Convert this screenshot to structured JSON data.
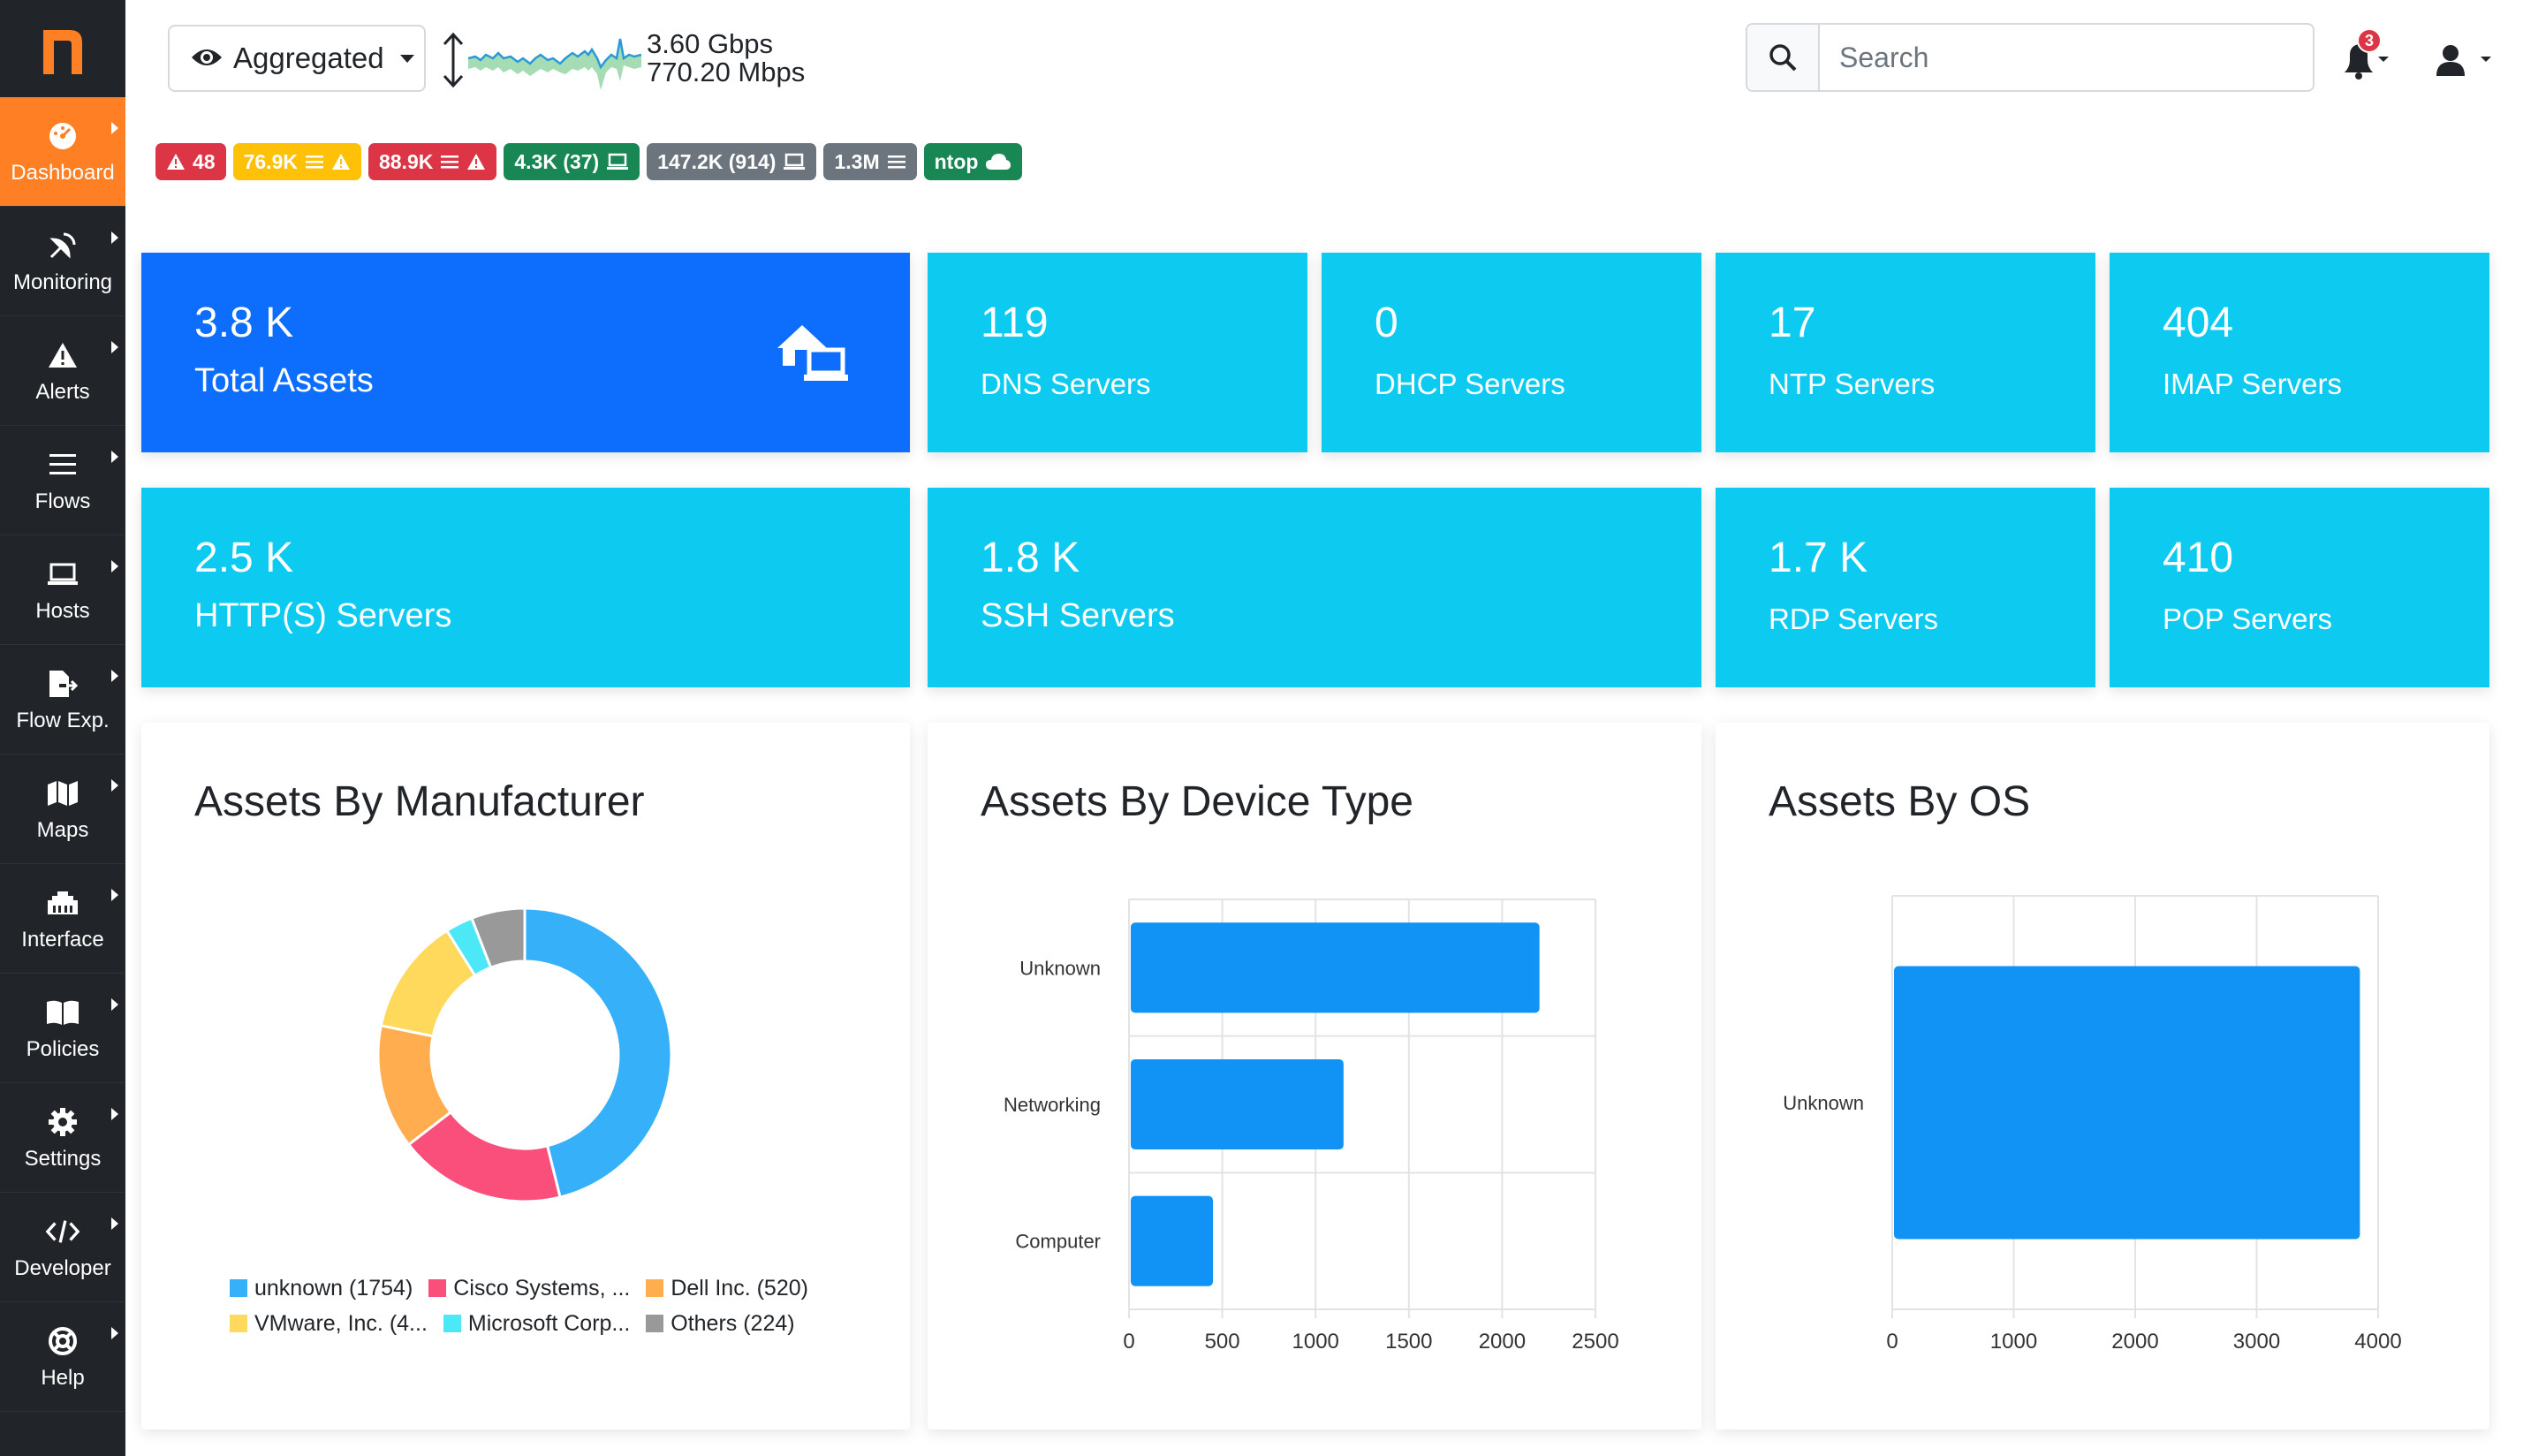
{
  "app": {
    "logo_letter": "n"
  },
  "sidebar": {
    "items": [
      {
        "label": "Dashboard",
        "icon": "gauge-icon",
        "active": true
      },
      {
        "label": "Monitoring",
        "icon": "satellite-dish-icon"
      },
      {
        "label": "Alerts",
        "icon": "warning-triangle-icon"
      },
      {
        "label": "Flows",
        "icon": "list-lines-icon"
      },
      {
        "label": "Hosts",
        "icon": "laptop-icon"
      },
      {
        "label": "Flow Exp.",
        "icon": "file-export-icon"
      },
      {
        "label": "Maps",
        "icon": "map-icon"
      },
      {
        "label": "Interface",
        "icon": "ethernet-icon"
      },
      {
        "label": "Policies",
        "icon": "book-icon"
      },
      {
        "label": "Settings",
        "icon": "gear-icon"
      },
      {
        "label": "Developer",
        "icon": "code-icon"
      },
      {
        "label": "Help",
        "icon": "life-ring-icon"
      }
    ]
  },
  "topbar": {
    "interface": "Aggregated",
    "throughput_upper": "3.60 Gbps",
    "throughput_lower": "770.20 Mbps",
    "search_placeholder": "Search",
    "notifications_count": "3"
  },
  "badges": [
    {
      "text": "48",
      "color": "#dc3545",
      "text_color": "#ffffff",
      "icons": [
        "warning-icon"
      ],
      "icon_first": true
    },
    {
      "text": "76.9K",
      "color": "#ffc107",
      "text_color": "#ffffff",
      "icons": [
        "list-icon",
        "warning-icon"
      ]
    },
    {
      "text": "88.9K",
      "color": "#dc3545",
      "text_color": "#ffffff",
      "icons": [
        "list-icon",
        "warning-icon"
      ]
    },
    {
      "text": "4.3K (37)",
      "color": "#198754",
      "text_color": "#ffffff",
      "icons": [
        "laptop-icon"
      ]
    },
    {
      "text": "147.2K (914)",
      "color": "#6c757d",
      "text_color": "#ffffff",
      "icons": [
        "laptop-icon"
      ]
    },
    {
      "text": "1.3M",
      "color": "#6c757d",
      "text_color": "#ffffff",
      "icons": [
        "list-icon"
      ]
    },
    {
      "text": "ntop",
      "color": "#198754",
      "text_color": "#ffffff",
      "icons": [
        "cloud-icon"
      ]
    }
  ],
  "cards": {
    "total_assets": {
      "value": "3.8 K",
      "label": "Total Assets",
      "color": "#0d6efd"
    },
    "dns": {
      "value": "119",
      "label": "DNS Servers",
      "color": "#0dcaf0"
    },
    "dhcp": {
      "value": "0",
      "label": "DHCP Servers",
      "color": "#0dcaf0"
    },
    "ntp": {
      "value": "17",
      "label": "NTP Servers",
      "color": "#0dcaf0"
    },
    "imap": {
      "value": "404",
      "label": "IMAP Servers",
      "color": "#0dcaf0"
    },
    "http": {
      "value": "2.5 K",
      "label": "HTTP(S) Servers",
      "color": "#0dcaf0"
    },
    "ssh": {
      "value": "1.8 K",
      "label": "SSH Servers",
      "color": "#0dcaf0"
    },
    "rdp": {
      "value": "1.7 K",
      "label": "RDP Servers",
      "color": "#0dcaf0"
    },
    "pop": {
      "value": "410",
      "label": "POP Servers",
      "color": "#0dcaf0"
    }
  },
  "panels": {
    "manufacturer": {
      "title": "Assets By Manufacturer"
    },
    "device_type": {
      "title": "Assets By Device Type"
    },
    "os": {
      "title": "Assets By OS"
    }
  },
  "chart_data": [
    {
      "type": "pie",
      "donut": true,
      "title": "Assets By Manufacturer",
      "labels": [
        "unknown (1754)",
        "Cisco Systems, ...",
        "Dell Inc. (520)",
        "VMware, Inc. (4...",
        "Microsoft Corp...",
        "Others (224)"
      ],
      "values": [
        1754,
        700,
        520,
        490,
        115,
        224
      ],
      "colors": [
        "#36b0f9",
        "#f94f7a",
        "#ffad4f",
        "#ffd95c",
        "#4ce8f7",
        "#999999"
      ],
      "legend_placement": "bottom"
    },
    {
      "type": "bar",
      "orientation": "horizontal",
      "title": "Assets By Device Type",
      "categories": [
        "Unknown",
        "Networking",
        "Computer"
      ],
      "values": [
        2200,
        1150,
        450
      ],
      "xlim": [
        0,
        2500
      ],
      "xticks": [
        "0",
        "500",
        "1000",
        "1500",
        "2000",
        "2500"
      ],
      "color": "#1093f5",
      "grid": true
    },
    {
      "type": "bar",
      "orientation": "horizontal",
      "title": "Assets By OS",
      "categories": [
        "Unknown"
      ],
      "values": [
        3850
      ],
      "xlim": [
        0,
        4000
      ],
      "xticks": [
        "0",
        "1000",
        "2000",
        "3000",
        "4000"
      ],
      "color": "#1093f5",
      "grid": true
    }
  ]
}
